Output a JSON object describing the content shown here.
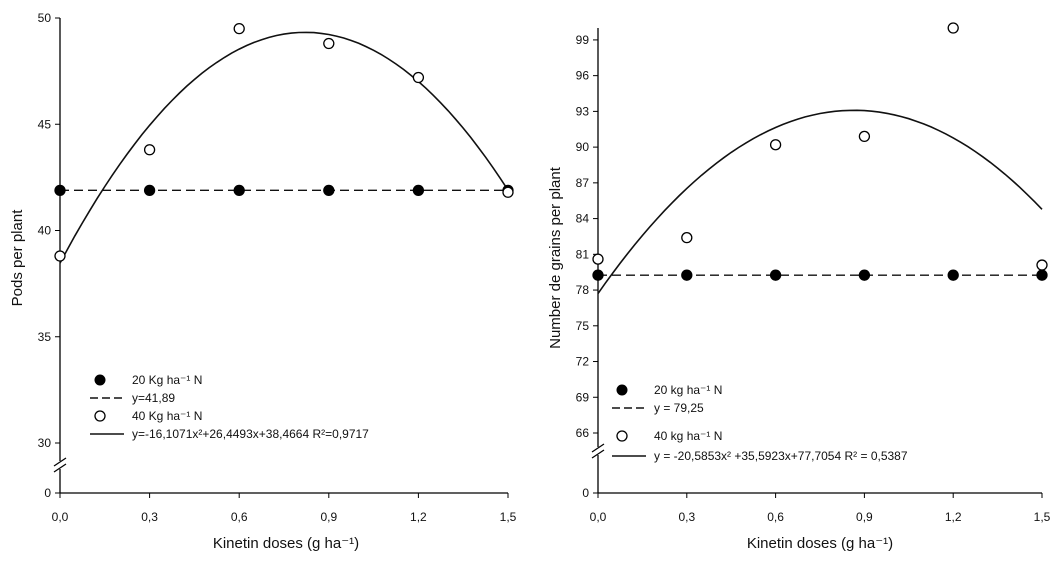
{
  "chart_data": [
    {
      "type": "scatter",
      "xlabel": "Kinetin doses (g ha⁻¹)",
      "ylabel": "Pods per plant",
      "x_ticks": [
        "0,0",
        "0,3",
        "0,6",
        "0,9",
        "1,2",
        "1,5"
      ],
      "y_ticks": [
        "0",
        "30",
        "35",
        "40",
        "45",
        "50"
      ],
      "xlim": [
        0,
        1.5
      ],
      "ylim": [
        30,
        50
      ],
      "axis_break": true,
      "series": [
        {
          "name": "20 Kg ha⁻¹ N",
          "marker": "filled-circle",
          "x": [
            0,
            0.3,
            0.6,
            0.9,
            1.2,
            1.5
          ],
          "y": [
            41.89,
            41.89,
            41.89,
            41.89,
            41.89,
            41.89
          ]
        },
        {
          "name": "40 Kg ha⁻¹ N",
          "marker": "open-circle",
          "x": [
            0,
            0.3,
            0.6,
            0.9,
            1.2,
            1.5
          ],
          "y": [
            38.8,
            43.8,
            49.5,
            48.8,
            47.2,
            41.8
          ]
        }
      ],
      "fits": [
        {
          "label": "y=41,89",
          "style": "dashed",
          "kind": "constant",
          "a": 41.89
        },
        {
          "label": "y=-16,1071x²+26,4493x+38,4664 R²=0,9717",
          "style": "solid",
          "kind": "quadratic",
          "a": -16.1071,
          "b": 26.4493,
          "c": 38.4664
        }
      ]
    },
    {
      "type": "scatter",
      "xlabel": "Kinetin doses (g ha⁻¹)",
      "ylabel": "Number de grains per plant",
      "x_ticks": [
        "0,0",
        "0,3",
        "0,6",
        "0,9",
        "1,2",
        "1,5"
      ],
      "y_ticks": [
        "0",
        "66",
        "69",
        "72",
        "75",
        "78",
        "81",
        "84",
        "87",
        "90",
        "93",
        "96",
        "99"
      ],
      "xlim": [
        0,
        1.5
      ],
      "ylim": [
        66,
        100
      ],
      "axis_break": true,
      "series": [
        {
          "name": "20 kg ha⁻¹ N",
          "marker": "filled-circle",
          "x": [
            0,
            0.3,
            0.6,
            0.9,
            1.2,
            1.5
          ],
          "y": [
            79.25,
            79.25,
            79.25,
            79.25,
            79.25,
            79.25
          ]
        },
        {
          "name": "40 kg ha⁻¹ N",
          "marker": "open-circle",
          "x": [
            0,
            0.3,
            0.6,
            0.9,
            1.2,
            1.5
          ],
          "y": [
            80.6,
            82.4,
            90.2,
            90.9,
            100.0,
            80.1
          ]
        }
      ],
      "fits": [
        {
          "label": "y = 79,25",
          "style": "dashed",
          "kind": "constant",
          "a": 79.25
        },
        {
          "label": "y = -20,5853x² +35,5923x+77,7054  R² = 0,5387",
          "style": "solid",
          "kind": "quadratic",
          "a": -20.5853,
          "b": 35.5923,
          "c": 77.7054
        }
      ]
    }
  ]
}
